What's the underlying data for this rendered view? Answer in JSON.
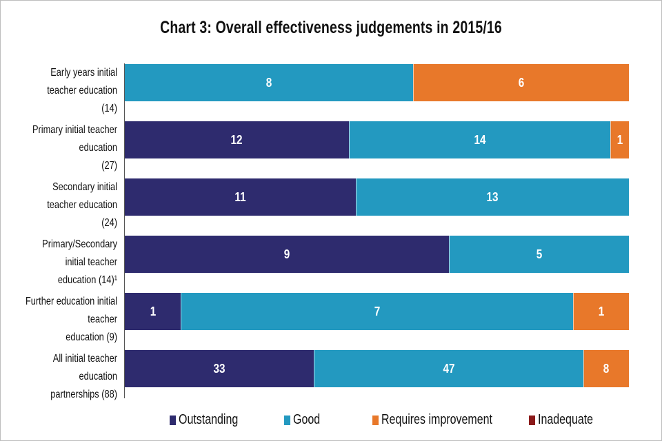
{
  "chart_data": {
    "type": "bar",
    "orientation": "horizontal",
    "stacked": true,
    "percent_stacked": true,
    "title": "Chart 3: Overall effectiveness judgements in 2015/16",
    "categories": [
      [
        "Early years initial teacher education",
        "(14)"
      ],
      [
        "Primary initial teacher education",
        "(27)"
      ],
      [
        "Secondary initial teacher education",
        "(24)"
      ],
      [
        "Primary/Secondary initial teacher",
        "education (14)¹"
      ],
      [
        "Further education initial teacher",
        "education (9)"
      ],
      [
        "All initial teacher education",
        "partnerships (88)"
      ]
    ],
    "series": [
      {
        "name": "Outstanding",
        "color": "#2e2b6e",
        "values": [
          0,
          12,
          11,
          9,
          1,
          33
        ]
      },
      {
        "name": "Good",
        "color": "#2399c0",
        "values": [
          8,
          14,
          13,
          5,
          7,
          47
        ]
      },
      {
        "name": "Requires improvement",
        "color": "#e8782a",
        "values": [
          6,
          1,
          0,
          0,
          1,
          8
        ]
      },
      {
        "name": "Inadequate",
        "color": "#8b1a1a",
        "values": [
          0,
          0,
          0,
          0,
          0,
          0
        ]
      }
    ],
    "legend_position": "bottom",
    "xlabel": "",
    "ylabel": ""
  }
}
